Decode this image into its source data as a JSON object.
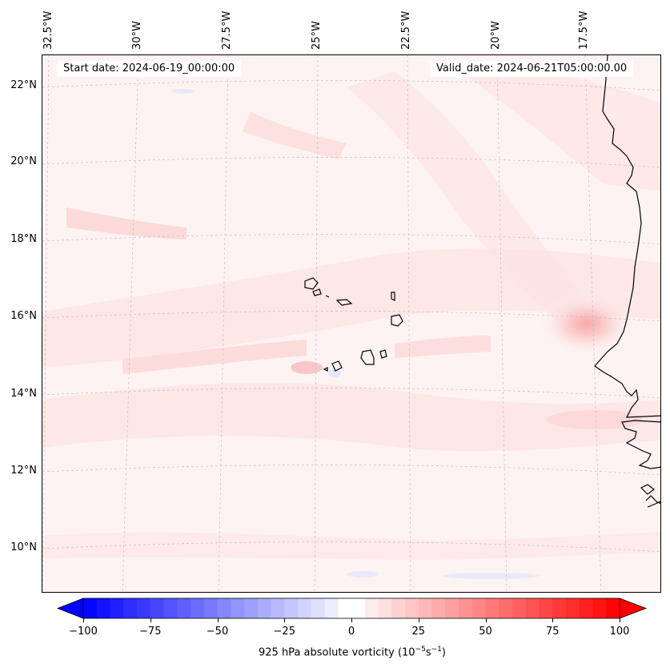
{
  "map": {
    "start_date": "Start date: 2024-06-19_00:00:00",
    "valid_date": "Valid_date: 2024-06-21T05:00:00.00",
    "longitude_labels": [
      "32.5°W",
      "30°W",
      "27.5°W",
      "25°W",
      "22.5°W",
      "20°W",
      "17.5°W"
    ],
    "latitude_labels": [
      "22°N",
      "20°N",
      "18°N",
      "16°N",
      "14°N",
      "12°N",
      "10°N"
    ],
    "coastline_color": "#000000",
    "gridline_color": "#bbbbbb"
  },
  "colorbar": {
    "label_prefix": "925 hPa absolute vorticity (10",
    "label_exp1": "−5",
    "label_mid": "s",
    "label_exp2": "−1",
    "label_suffix": ")",
    "ticks": [
      "−100",
      "−75",
      "−50",
      "−25",
      "0",
      "25",
      "50",
      "75",
      "100"
    ],
    "min": -100,
    "max": 100,
    "step": 5,
    "colors": {
      "negative": "#0000ff",
      "neutral": "#ffffff",
      "positive": "#ff0000"
    }
  }
}
